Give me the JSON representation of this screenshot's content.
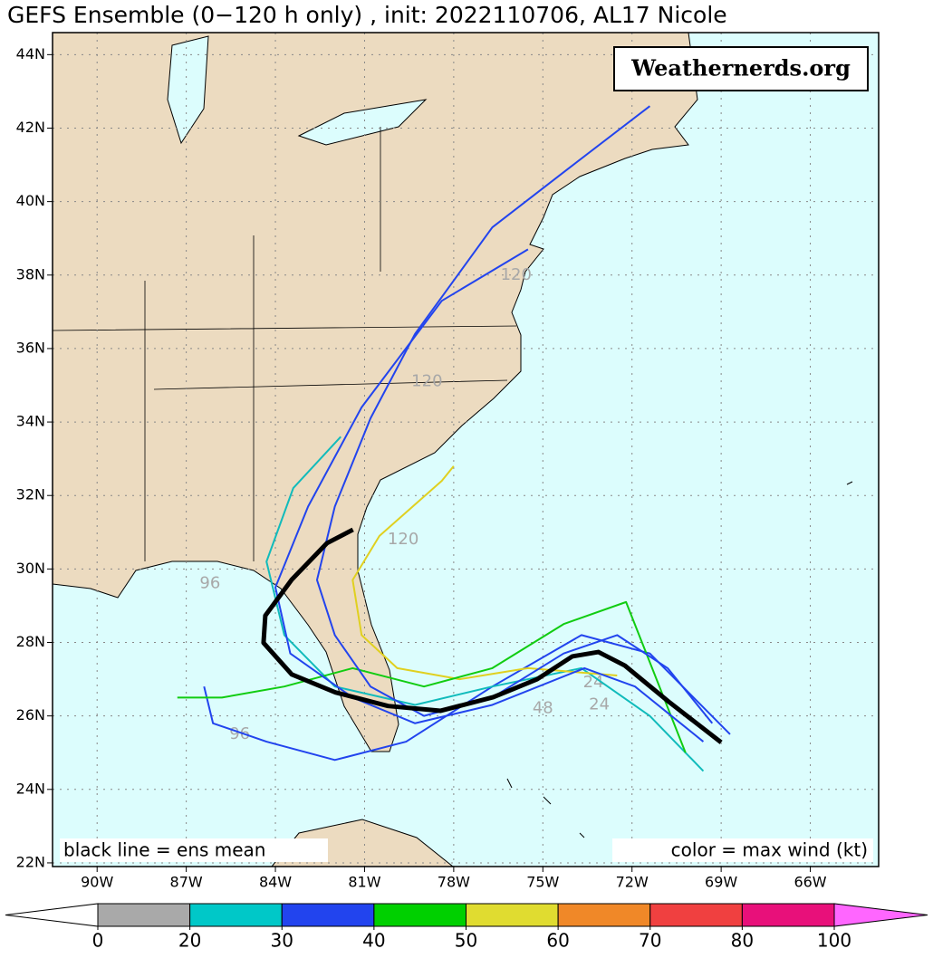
{
  "chart_data": {
    "type": "track-map",
    "title": "GEFS Ensemble (0−120 h only) , init: 2022110706, AL17 Nicole",
    "watermark": "Weathernerds.org",
    "xlim": [
      -91.5,
      -63.7
    ],
    "ylim": [
      21.9,
      44.6
    ],
    "xticks": [
      {
        "value": -90,
        "label": "90W"
      },
      {
        "value": -87,
        "label": "87W"
      },
      {
        "value": -84,
        "label": "84W"
      },
      {
        "value": -81,
        "label": "81W"
      },
      {
        "value": -78,
        "label": "78W"
      },
      {
        "value": -75,
        "label": "75W"
      },
      {
        "value": -72,
        "label": "72W"
      },
      {
        "value": -69,
        "label": "69W"
      },
      {
        "value": -66,
        "label": "66W"
      }
    ],
    "yticks": [
      {
        "value": 22,
        "label": "22N"
      },
      {
        "value": 24,
        "label": "24N"
      },
      {
        "value": 26,
        "label": "26N"
      },
      {
        "value": 28,
        "label": "28N"
      },
      {
        "value": 30,
        "label": "30N"
      },
      {
        "value": 32,
        "label": "32N"
      },
      {
        "value": 34,
        "label": "34N"
      },
      {
        "value": 36,
        "label": "36N"
      },
      {
        "value": 38,
        "label": "38N"
      },
      {
        "value": 40,
        "label": "40N"
      },
      {
        "value": 42,
        "label": "42N"
      },
      {
        "value": 44,
        "label": "44N"
      }
    ],
    "grid": true,
    "series": [
      {
        "name": "ens mean",
        "color": "#000000",
        "lon": [
          -81.39,
          -82.27,
          -83.45,
          -84.34,
          -84.4,
          -83.45,
          -81.98,
          -80.21,
          -78.44,
          -76.67,
          -75.19,
          -74.01,
          -73.13,
          -72.24,
          -70.77,
          -69.0
        ],
        "lat": [
          31.07,
          30.7,
          29.71,
          28.73,
          27.99,
          27.13,
          26.64,
          26.27,
          26.14,
          26.51,
          27.0,
          27.62,
          27.74,
          27.37,
          26.39,
          25.28
        ]
      },
      {
        "color": "#2244ee",
        "lon": [
          -69.3,
          -70.8,
          -72.5,
          -74.3,
          -76.7,
          -79.0,
          -80.8,
          -82.0,
          -82.6,
          -82.0,
          -80.8,
          -79.3,
          -76.7,
          -74.3,
          -71.4
        ],
        "lat": [
          25.8,
          27.3,
          28.2,
          27.7,
          26.5,
          26.0,
          26.8,
          28.2,
          29.7,
          31.7,
          34.1,
          36.4,
          39.3,
          40.8,
          42.6
        ]
      },
      {
        "color": "#2244ee",
        "lon": [
          -69.6,
          -71.9,
          -73.6,
          -76.7,
          -79.3,
          -81.4,
          -83.5,
          -84.0,
          -82.9,
          -81.1,
          -78.4,
          -75.5
        ],
        "lat": [
          25.3,
          26.8,
          27.3,
          26.3,
          25.8,
          26.5,
          27.7,
          29.5,
          31.7,
          34.4,
          37.3,
          38.7
        ]
      },
      {
        "color": "#11cc11",
        "lon": [
          -70.2,
          -72.2,
          -74.3,
          -76.7,
          -79.0,
          -81.4,
          -83.7,
          -85.8,
          -87.3
        ],
        "lat": [
          25.0,
          29.1,
          28.5,
          27.3,
          26.8,
          27.3,
          26.8,
          26.5,
          26.5
        ]
      },
      {
        "color": "#e0d020",
        "lon": [
          -72.5,
          -75.5,
          -77.8,
          -79.9,
          -81.1,
          -81.4,
          -80.5,
          -78.4,
          -78.0
        ],
        "lat": [
          27.1,
          27.3,
          27.0,
          27.3,
          28.2,
          29.7,
          30.9,
          32.4,
          32.8
        ]
      },
      {
        "color": "#11bbbb",
        "lon": [
          -69.6,
          -71.4,
          -73.7,
          -76.7,
          -79.3,
          -82.0,
          -83.7,
          -84.3,
          -83.4,
          -81.8
        ],
        "lat": [
          24.5,
          26.0,
          27.3,
          26.8,
          26.3,
          26.8,
          28.2,
          30.2,
          32.2,
          33.6
        ]
      },
      {
        "color": "#2244ee",
        "lon": [
          -68.7,
          -71.4,
          -73.7,
          -76.7,
          -79.6,
          -82.0,
          -84.3,
          -86.1,
          -86.4
        ],
        "lat": [
          25.5,
          27.7,
          28.2,
          26.8,
          25.3,
          24.8,
          25.3,
          25.8,
          26.8
        ]
      }
    ],
    "annotations": [
      {
        "text": "120",
        "lon": -78.9,
        "lat": 35.1
      },
      {
        "text": "120",
        "lon": -75.9,
        "lat": 38.0
      },
      {
        "text": "120",
        "lon": -79.7,
        "lat": 30.8
      },
      {
        "text": "96",
        "lon": -86.2,
        "lat": 29.6
      },
      {
        "text": "96",
        "lon": -85.2,
        "lat": 25.5
      },
      {
        "text": "48",
        "lon": -75.0,
        "lat": 26.2
      },
      {
        "text": "24",
        "lon": -73.3,
        "lat": 26.9
      },
      {
        "text": "24",
        "lon": -73.1,
        "lat": 26.3
      }
    ],
    "note_left": "black line = ens mean",
    "note_right": "color = max wind (kt)",
    "colorbar": {
      "ticks": [
        0,
        20,
        30,
        40,
        50,
        60,
        70,
        80,
        100
      ],
      "colors": [
        "#a9a9a9",
        "#00c8c8",
        "#2244ee",
        "#00d000",
        "#e0dc30",
        "#f08828",
        "#f04040",
        "#e8107a"
      ],
      "under_color": "#ffffff",
      "over_color": "#ff66ff"
    }
  }
}
